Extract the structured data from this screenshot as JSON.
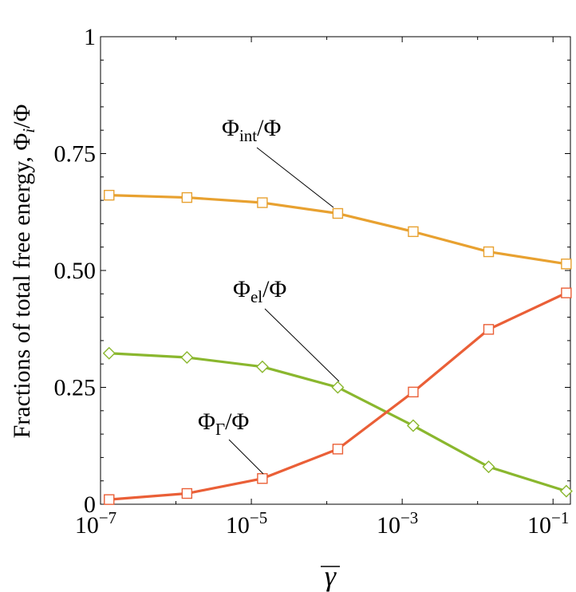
{
  "chart_data": {
    "type": "line",
    "xlabel": "γ",
    "ylabel": "Fractions of total free energy, Φi/Φ",
    "ylabel_parts": [
      "Fractions of total free energy, Φ",
      "i",
      "/Φ"
    ],
    "x_scale": "log",
    "xlim": [
      1e-07,
      0.17
    ],
    "ylim": [
      0,
      1
    ],
    "x_ticks": [
      {
        "base": "10",
        "exp": "−7",
        "value": 1e-07
      },
      {
        "base": "10",
        "exp": "−5",
        "value": 1e-05
      },
      {
        "base": "10",
        "exp": "−3",
        "value": 0.001
      },
      {
        "base": "10",
        "exp": "−1",
        "value": 0.1
      }
    ],
    "y_ticks": [
      {
        "label": "0",
        "value": 0
      },
      {
        "label": "0.25",
        "value": 0.25
      },
      {
        "label": "0.50",
        "value": 0.5
      },
      {
        "label": "0.75",
        "value": 0.75
      },
      {
        "label": "1",
        "value": 1
      }
    ],
    "grid": false,
    "x": [
      1.3e-07,
      1.4e-06,
      1.4e-05,
      0.00014,
      0.0014,
      0.014,
      0.15
    ],
    "series": [
      {
        "id": "int",
        "values": [
          0.661,
          0.656,
          0.645,
          0.622,
          0.583,
          0.54,
          0.514
        ],
        "color": "#E8A130",
        "marker": "square",
        "label": {
          "main": "Φ",
          "sub": "int",
          "rest": "/Φ"
        }
      },
      {
        "id": "el",
        "values": [
          0.323,
          0.314,
          0.294,
          0.25,
          0.168,
          0.08,
          0.028
        ],
        "color": "#8AB72E",
        "marker": "diamond",
        "label": {
          "main": "Φ",
          "sub": "el",
          "rest": "/Φ"
        }
      },
      {
        "id": "gamma",
        "values": [
          0.01,
          0.023,
          0.055,
          0.118,
          0.24,
          0.374,
          0.452
        ],
        "color": "#EA5F37",
        "marker": "square",
        "label": {
          "main": "Φ",
          "sub": "Γ",
          "rest": "/Φ"
        }
      }
    ]
  }
}
